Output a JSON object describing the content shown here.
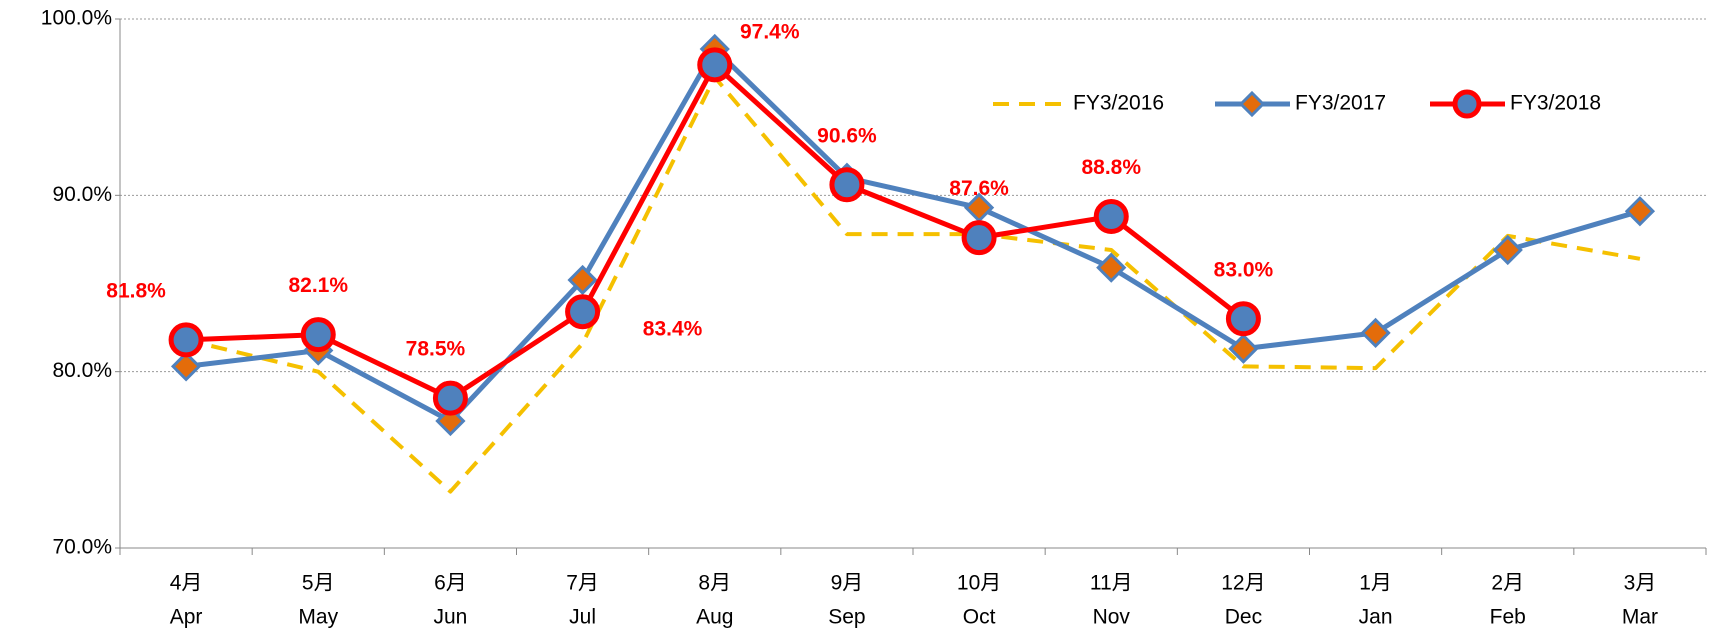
{
  "chart_data": {
    "type": "line",
    "categories": [
      [
        "4月",
        "Apr"
      ],
      [
        "5月",
        "May"
      ],
      [
        "6月",
        "Jun"
      ],
      [
        "7月",
        "Jul"
      ],
      [
        "8月",
        "Aug"
      ],
      [
        "9月",
        "Sep"
      ],
      [
        "10月",
        "Oct"
      ],
      [
        "11月",
        "Nov"
      ],
      [
        "12月",
        "Dec"
      ],
      [
        "1月",
        "Jan"
      ],
      [
        "2月",
        "Feb"
      ],
      [
        "3月",
        "Mar"
      ]
    ],
    "series": [
      {
        "name": "FY3/2016",
        "color": "#f5c000",
        "dash": true,
        "values": [
          81.8,
          80.0,
          73.2,
          81.6,
          96.7,
          87.8,
          87.8,
          86.9,
          80.3,
          80.2,
          87.7,
          86.4
        ]
      },
      {
        "name": "FY3/2017",
        "color": "#4f81bd",
        "marker": "diamond",
        "marker_color": "#e46c0a",
        "values": [
          80.3,
          81.2,
          77.2,
          85.2,
          98.3,
          91.0,
          89.3,
          85.9,
          81.3,
          82.2,
          86.9,
          89.1
        ]
      },
      {
        "name": "FY3/2018",
        "color": "#ff0000",
        "marker": "circle",
        "marker_color": "#4f81bd",
        "values": [
          81.8,
          82.1,
          78.5,
          83.4,
          97.4,
          90.6,
          87.6,
          88.8,
          83.0,
          null,
          null,
          null
        ],
        "value_labels": [
          "81.8%",
          "82.1%",
          "78.5%",
          "83.4%",
          "97.4%",
          "90.6%",
          "87.6%",
          "88.8%",
          "83.0%",
          null,
          null,
          null
        ]
      }
    ],
    "ylim": [
      70,
      100
    ],
    "yticks": [
      {
        "value": 70,
        "label": "70.0%"
      },
      {
        "value": 80,
        "label": "80.0%"
      },
      {
        "value": 90,
        "label": "90.0%"
      },
      {
        "value": 100,
        "label": "100.0%"
      }
    ],
    "grid": true,
    "legend": "upper right"
  }
}
